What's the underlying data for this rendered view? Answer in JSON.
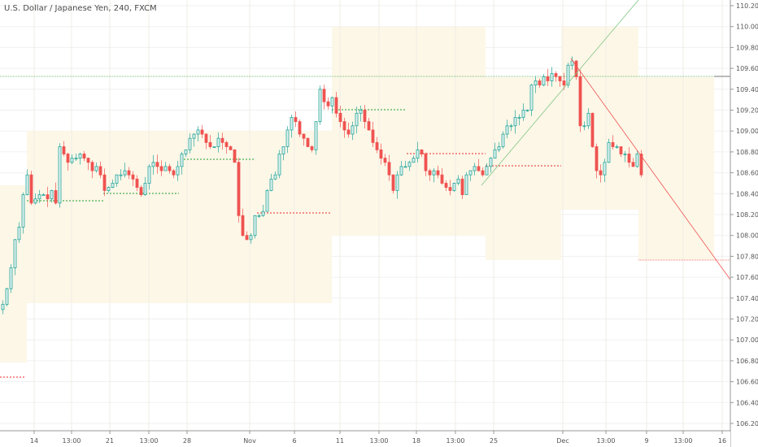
{
  "header": {
    "title": "U.S. Dollar / Japanese Yen, 240, FXCM"
  },
  "colors": {
    "up": "#26a69a",
    "down": "#ef5350",
    "box": "#fdf7e8",
    "green_line": "#4caf50",
    "red_line": "#ef5350"
  },
  "chart_data": {
    "type": "candlestick",
    "title": "U.S. Dollar / Japanese Yen, 240, FXCM",
    "ylim": [
      106.1,
      110.25
    ],
    "y_ticks": [
      "110.200",
      "110.000",
      "109.800",
      "109.600",
      "109.400",
      "109.200",
      "109.000",
      "108.800",
      "108.600",
      "108.400",
      "108.200",
      "108.000",
      "107.800",
      "107.600",
      "107.400",
      "107.200",
      "107.000",
      "106.800",
      "106.600",
      "106.400",
      "106.200"
    ],
    "x_ticks": [
      "14",
      "13:00",
      "21",
      "13:00",
      "28",
      "Nov",
      "6",
      "11",
      "13:00",
      "18",
      "13:00",
      "25",
      "Dec",
      "13:00",
      "9",
      "13:00",
      "16"
    ],
    "closes": [
      107.34,
      107.49,
      107.69,
      107.96,
      108.08,
      108.39,
      108.58,
      108.31,
      108.35,
      108.39,
      108.39,
      108.35,
      108.43,
      108.31,
      108.85,
      108.78,
      108.7,
      108.74,
      108.74,
      108.78,
      108.74,
      108.7,
      108.62,
      108.66,
      108.58,
      108.43,
      108.46,
      108.5,
      108.58,
      108.58,
      108.62,
      108.58,
      108.54,
      108.46,
      108.39,
      108.5,
      108.66,
      108.7,
      108.66,
      108.62,
      108.66,
      108.62,
      108.58,
      108.66,
      108.78,
      108.82,
      108.93,
      108.97,
      109.01,
      108.97,
      108.89,
      108.85,
      108.85,
      108.93,
      108.89,
      108.85,
      108.82,
      108.7,
      108.19,
      108.0,
      107.96,
      108.0,
      108.19,
      108.19,
      108.23,
      108.43,
      108.54,
      108.58,
      108.78,
      108.85,
      109.01,
      109.13,
      109.09,
      108.97,
      108.93,
      108.85,
      108.82,
      109.09,
      109.4,
      109.28,
      109.24,
      109.32,
      109.17,
      109.09,
      109.01,
      108.97,
      109.05,
      109.17,
      109.2,
      109.09,
      109.01,
      108.89,
      108.82,
      108.74,
      108.7,
      108.58,
      108.43,
      108.58,
      108.66,
      108.66,
      108.7,
      108.74,
      108.82,
      108.78,
      108.62,
      108.58,
      108.62,
      108.58,
      108.5,
      108.46,
      108.43,
      108.5,
      108.54,
      108.39,
      108.58,
      108.62,
      108.66,
      108.62,
      108.58,
      108.66,
      108.74,
      108.82,
      108.85,
      108.97,
      109.05,
      109.05,
      109.13,
      109.13,
      109.2,
      109.2,
      109.44,
      109.48,
      109.44,
      109.52,
      109.48,
      109.55,
      109.52,
      109.48,
      109.44,
      109.63,
      109.67,
      109.52,
      109.05,
      109.05,
      109.17,
      108.85,
      108.62,
      108.58,
      108.7,
      108.89,
      108.85,
      108.85,
      108.78,
      108.78,
      108.7,
      108.66,
      108.78,
      108.58
    ],
    "horizontal_levels": [
      {
        "price": 109.52,
        "color": "green",
        "style": "dotted"
      },
      {
        "price": 107.775,
        "color": "red",
        "style": "dotted"
      }
    ]
  }
}
